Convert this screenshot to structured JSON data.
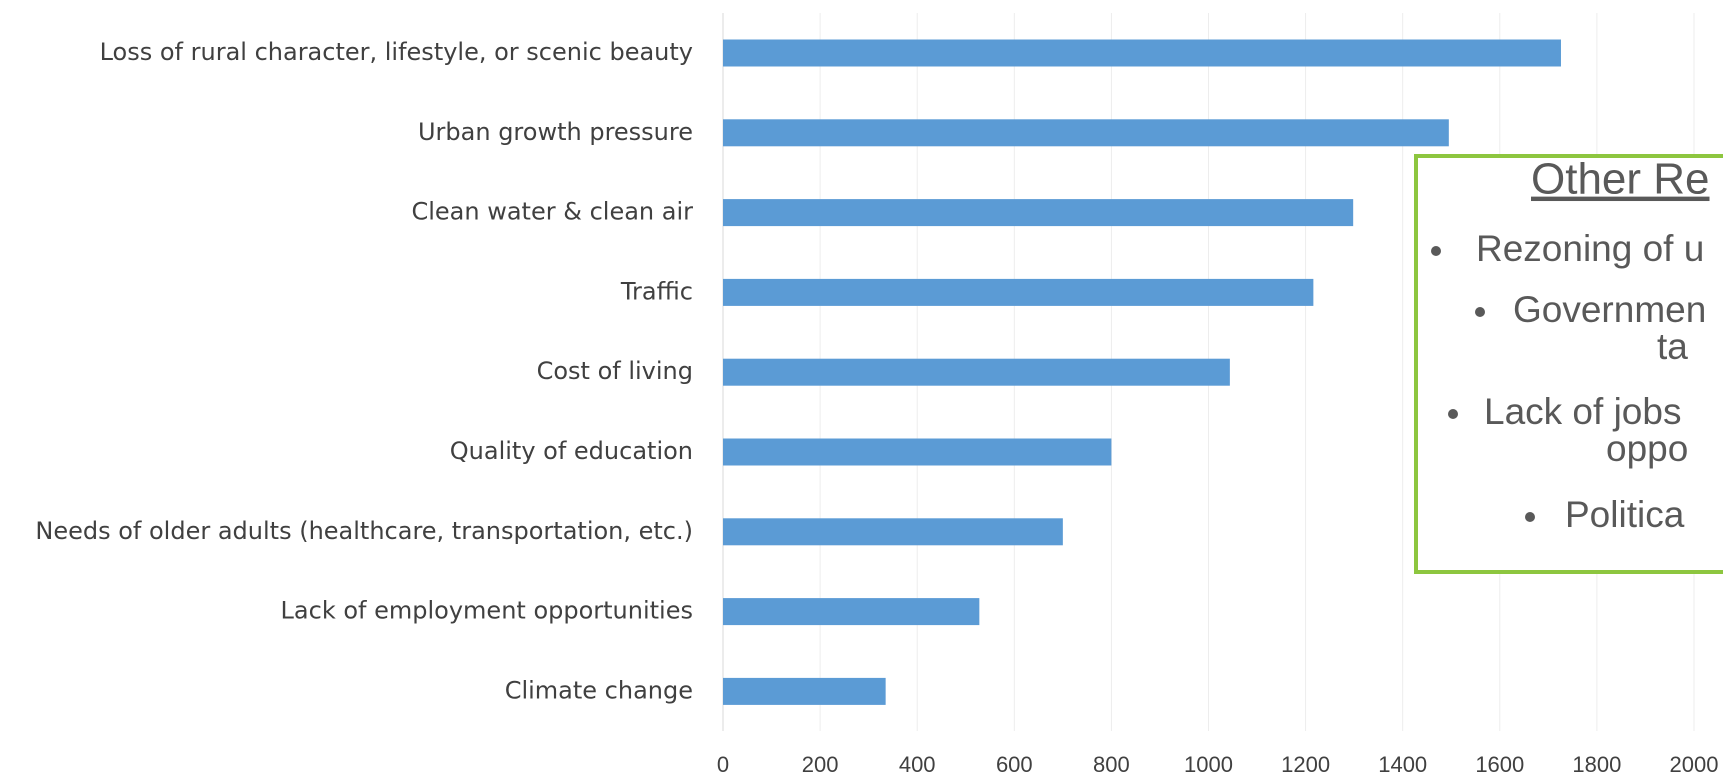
{
  "chart_data": {
    "type": "bar",
    "orientation": "horizontal",
    "categories": [
      "Loss of rural character, lifestyle, or scenic beauty",
      "Urban growth pressure",
      "Clean water & clean air",
      "Traffic",
      "Cost of living",
      "Quality of education",
      "Needs of older adults (healthcare, transportation, etc.)",
      "Lack of employment opportunities",
      "Climate change"
    ],
    "values": [
      1726,
      1495,
      1298,
      1216,
      1044,
      800,
      700,
      528,
      335
    ],
    "color": "#5b9bd5",
    "xlim": [
      0,
      2000
    ],
    "xticks": [
      0,
      200,
      400,
      600,
      800,
      1000,
      1200,
      1400,
      1600,
      1800,
      2000
    ],
    "grid": true,
    "annotation": {
      "title": "Other Re",
      "items": [
        [
          "Rezoning of u"
        ],
        [
          "Governmen",
          "ta"
        ],
        [
          "Lack of jobs",
          "oppo"
        ],
        [
          "Politica"
        ]
      ],
      "border_color": "#8dc63f"
    }
  }
}
